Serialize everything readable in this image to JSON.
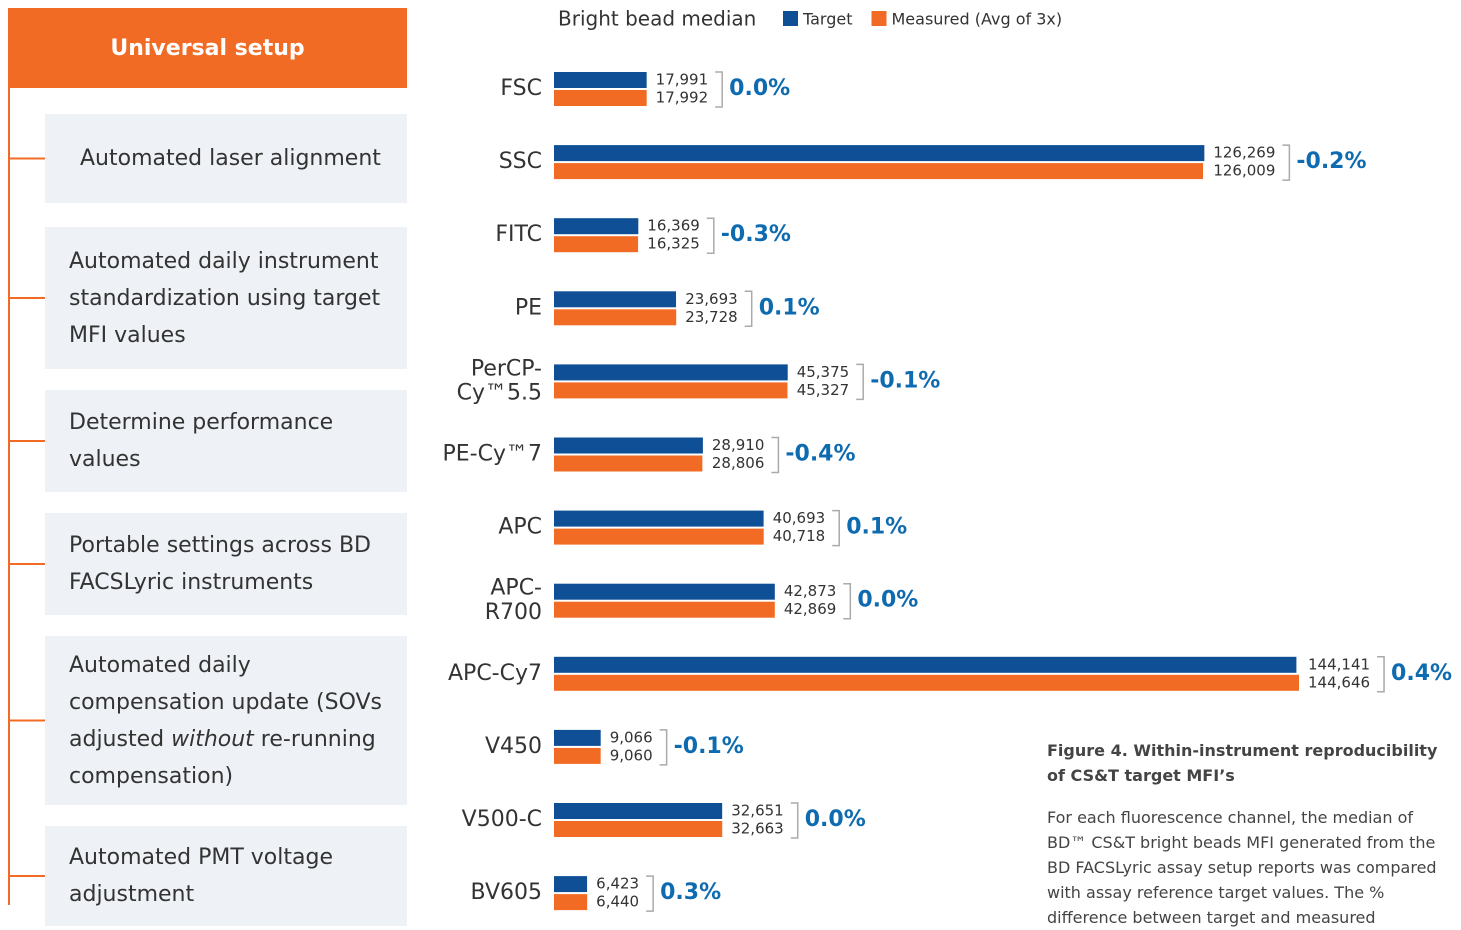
{
  "sidebar": {
    "title": "Universal setup",
    "items": [
      "Automated laser alignment",
      "Automated daily instrument standardization using target MFI values",
      "Determine performance values",
      "Portable settings across BD FACSLyric instruments",
      [
        "Automated daily compensation update (SOVs adjusted ",
        "without",
        " re-running compensation)"
      ],
      "Automated PMT voltage adjustment"
    ]
  },
  "chart_data": {
    "type": "hbar",
    "legend_title": "Bright bead median",
    "categories": [
      "FSC",
      "SSC",
      "FITC",
      "PE",
      "PerCP-\nCy™5.5",
      "PE-Cy™7",
      "APC",
      "APC-\nR700",
      "APC-Cy7",
      "V450",
      "V500-C",
      "BV605"
    ],
    "series": [
      {
        "name": "Target",
        "color": "#0e4f96",
        "values": [
          17991,
          126269,
          16369,
          23693,
          45375,
          28910,
          40693,
          42873,
          144141,
          9066,
          32651,
          6423
        ],
        "value_labels": [
          "17,991",
          "126,269",
          "16,369",
          "23,693",
          "45,375",
          "28,910",
          "40,693",
          "42,873",
          "144,141",
          "9,066",
          "32,651",
          "6,423"
        ]
      },
      {
        "name": "Measured (Avg of 3x)",
        "color": "#f26b24",
        "values": [
          17992,
          126009,
          16325,
          23728,
          45327,
          28806,
          40718,
          42869,
          144646,
          9060,
          32663,
          6440
        ],
        "value_labels": [
          "17,992",
          "126,009",
          "16,325",
          "23,728",
          "45,327",
          "28,806",
          "40,718",
          "42,869",
          "144,646",
          "9,060",
          "32,663",
          "6,440"
        ]
      }
    ],
    "annotations": [
      "0.0%",
      "-0.2%",
      "-0.3%",
      "0.1%",
      "-0.1%",
      "-0.4%",
      "0.1%",
      "0.0%",
      "0.4%",
      "-0.1%",
      "0.0%",
      "0.3%"
    ]
  },
  "caption": {
    "title": "Figure 4. Within-instrument reproducibility of CS&T target MFI’s",
    "body": "For each fluorescence channel, the median of BD™ CS&T bright beads MFI generated from the BD FACSLyric assay setup reports was compared with assay reference target values. The % difference between target and measured"
  }
}
